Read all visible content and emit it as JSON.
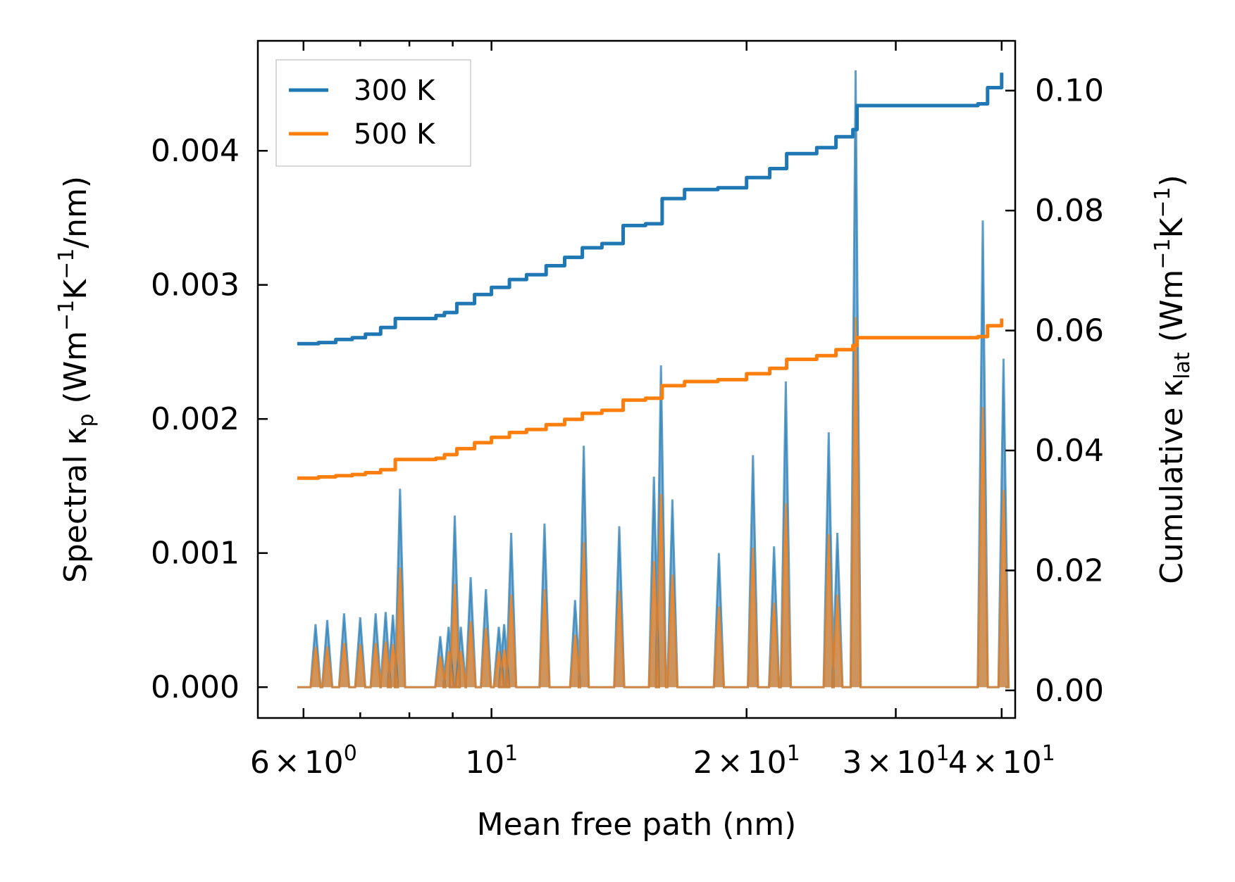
{
  "chart_data": {
    "type": "line",
    "xscale": "log",
    "xlabel": "Mean free path (nm)",
    "ylabel_left": "Spectral κ_p (Wm⁻¹K⁻¹/nm)",
    "ylabel_right": "Cumulative κ_lat (Wm⁻¹K⁻¹)",
    "xlim": [
      5.3,
      41.5
    ],
    "ylim_left": [
      -0.00023,
      0.00482
    ],
    "ylim_right": [
      -0.0046,
      0.1083
    ],
    "x_ticks": [
      {
        "value": 6,
        "mant": "6",
        "base": "10",
        "exp": "0"
      },
      {
        "value": 10,
        "mant": "",
        "base": "10",
        "exp": "1"
      },
      {
        "value": 20,
        "mant": "2",
        "base": "10",
        "exp": "1"
      },
      {
        "value": 30,
        "mant": "3",
        "base": "10",
        "exp": "1"
      },
      {
        "value": 40,
        "mant": "4",
        "base": "10",
        "exp": "1"
      }
    ],
    "y_left_ticks": [
      "0.000",
      "0.001",
      "0.002",
      "0.003",
      "0.004"
    ],
    "y_left_tick_values": [
      0,
      0.001,
      0.002,
      0.003,
      0.004
    ],
    "y_right_ticks": [
      "0.00",
      "0.02",
      "0.04",
      "0.06",
      "0.08",
      "0.10"
    ],
    "y_right_tick_values": [
      0,
      0.02,
      0.04,
      0.06,
      0.08,
      0.1
    ],
    "legend_position": "upper-left",
    "series": [
      {
        "name": "300 K",
        "color": "#1f77b4",
        "spectral_peaks": [
          [
            6.2,
            0.00047
          ],
          [
            6.4,
            0.0005
          ],
          [
            6.7,
            0.00055
          ],
          [
            7.0,
            0.00052
          ],
          [
            7.3,
            0.00055
          ],
          [
            7.5,
            0.00056
          ],
          [
            7.65,
            0.00054
          ],
          [
            7.8,
            0.00148
          ],
          [
            8.7,
            0.00038
          ],
          [
            8.9,
            0.00045
          ],
          [
            9.05,
            0.00128
          ],
          [
            9.2,
            0.00045
          ],
          [
            9.45,
            0.00082
          ],
          [
            9.85,
            0.00073
          ],
          [
            10.2,
            0.00045
          ],
          [
            10.35,
            0.00047
          ],
          [
            10.55,
            0.00115
          ],
          [
            11.55,
            0.00122
          ],
          [
            12.55,
            0.00065
          ],
          [
            12.85,
            0.0018
          ],
          [
            14.15,
            0.0012
          ],
          [
            15.55,
            0.00157
          ],
          [
            15.85,
            0.0024
          ],
          [
            16.35,
            0.0014
          ],
          [
            18.55,
            0.001
          ],
          [
            20.35,
            0.00173
          ],
          [
            21.55,
            0.00105
          ],
          [
            22.25,
            0.00228
          ],
          [
            25.0,
            0.0019
          ],
          [
            25.6,
            0.00115
          ],
          [
            26.9,
            0.0046
          ],
          [
            38.0,
            0.00348
          ],
          [
            40.2,
            0.00245
          ]
        ],
        "cumulative": [
          [
            5.9,
            0.0578
          ],
          [
            6.25,
            0.058
          ],
          [
            6.55,
            0.0585
          ],
          [
            6.85,
            0.0588
          ],
          [
            7.1,
            0.0594
          ],
          [
            7.4,
            0.0605
          ],
          [
            7.7,
            0.062
          ],
          [
            8.6,
            0.0625
          ],
          [
            8.8,
            0.063
          ],
          [
            9.1,
            0.0645
          ],
          [
            9.55,
            0.066
          ],
          [
            10.0,
            0.0672
          ],
          [
            10.5,
            0.0685
          ],
          [
            11.0,
            0.0693
          ],
          [
            11.6,
            0.0708
          ],
          [
            12.2,
            0.0722
          ],
          [
            12.8,
            0.0738
          ],
          [
            13.5,
            0.0745
          ],
          [
            14.3,
            0.0775
          ],
          [
            15.2,
            0.0778
          ],
          [
            15.9,
            0.082
          ],
          [
            16.9,
            0.0835
          ],
          [
            18.5,
            0.0838
          ],
          [
            20.0,
            0.0855
          ],
          [
            21.3,
            0.087
          ],
          [
            22.3,
            0.0895
          ],
          [
            24.2,
            0.0905
          ],
          [
            25.5,
            0.0923
          ],
          [
            26.7,
            0.0935
          ],
          [
            27.0,
            0.0975
          ],
          [
            37.5,
            0.0978
          ],
          [
            38.5,
            0.1005
          ],
          [
            40.0,
            0.103
          ]
        ],
        "_sampled_from_figure": true
      },
      {
        "name": "500 K",
        "color": "#ff7f0e",
        "spectral_peaks": [
          [
            6.2,
            0.0003
          ],
          [
            6.4,
            0.0003
          ],
          [
            6.7,
            0.00033
          ],
          [
            7.0,
            0.00032
          ],
          [
            7.3,
            0.00033
          ],
          [
            7.5,
            0.00034
          ],
          [
            7.65,
            0.00032
          ],
          [
            7.8,
            0.00089
          ],
          [
            8.7,
            0.00023
          ],
          [
            8.9,
            0.00027
          ],
          [
            9.05,
            0.00077
          ],
          [
            9.2,
            0.00027
          ],
          [
            9.45,
            0.00049
          ],
          [
            9.85,
            0.00044
          ],
          [
            10.2,
            0.00027
          ],
          [
            10.35,
            0.00028
          ],
          [
            10.55,
            0.00069
          ],
          [
            11.55,
            0.00073
          ],
          [
            12.55,
            0.00039
          ],
          [
            12.85,
            0.00108
          ],
          [
            14.15,
            0.00072
          ],
          [
            15.55,
            0.00094
          ],
          [
            15.85,
            0.00144
          ],
          [
            16.35,
            0.00084
          ],
          [
            18.55,
            0.0006
          ],
          [
            20.35,
            0.00104
          ],
          [
            21.55,
            0.00063
          ],
          [
            22.25,
            0.00137
          ],
          [
            25.0,
            0.00114
          ],
          [
            25.6,
            0.00069
          ],
          [
            26.9,
            0.00276
          ],
          [
            38.0,
            0.00209
          ],
          [
            40.2,
            0.00147
          ]
        ],
        "cumulative": [
          [
            5.9,
            0.0354
          ],
          [
            6.25,
            0.0356
          ],
          [
            6.55,
            0.0358
          ],
          [
            6.85,
            0.036
          ],
          [
            7.1,
            0.0363
          ],
          [
            7.4,
            0.0368
          ],
          [
            7.7,
            0.0385
          ],
          [
            8.6,
            0.0387
          ],
          [
            8.8,
            0.0393
          ],
          [
            9.1,
            0.0403
          ],
          [
            9.55,
            0.0413
          ],
          [
            10.0,
            0.0422
          ],
          [
            10.5,
            0.043
          ],
          [
            11.0,
            0.0435
          ],
          [
            11.6,
            0.0443
          ],
          [
            12.2,
            0.0452
          ],
          [
            12.8,
            0.0462
          ],
          [
            13.5,
            0.0467
          ],
          [
            14.3,
            0.0484
          ],
          [
            15.2,
            0.0487
          ],
          [
            15.9,
            0.0508
          ],
          [
            16.9,
            0.0515
          ],
          [
            18.5,
            0.0518
          ],
          [
            20.0,
            0.0528
          ],
          [
            21.3,
            0.0537
          ],
          [
            22.3,
            0.0552
          ],
          [
            24.2,
            0.0558
          ],
          [
            25.5,
            0.0568
          ],
          [
            26.7,
            0.0575
          ],
          [
            27.0,
            0.0588
          ],
          [
            37.5,
            0.059
          ],
          [
            38.5,
            0.0608
          ],
          [
            40.0,
            0.062
          ]
        ],
        "_sampled_from_figure": true
      }
    ]
  }
}
